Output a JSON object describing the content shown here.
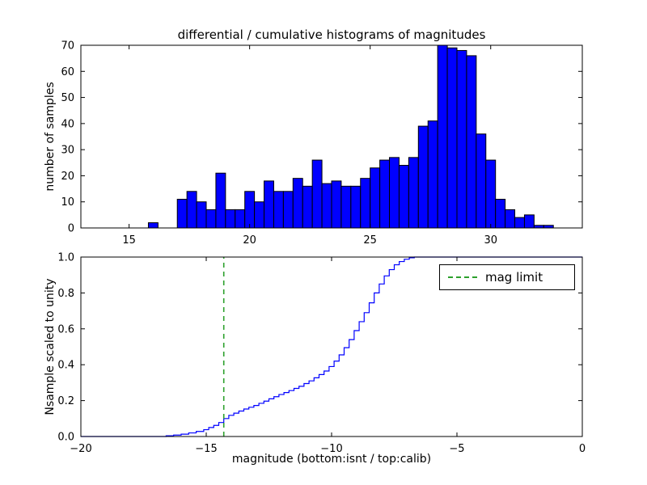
{
  "figure": {
    "title": "differential / cumulative histograms of magnitudes",
    "background": "#ffffff"
  },
  "chart_data": [
    {
      "type": "bar",
      "subtype": "histogram",
      "title": "differential / cumulative histograms of magnitudes",
      "xlabel": "",
      "ylabel": "number of samples",
      "xlim": [
        13,
        33.8
      ],
      "ylim": [
        0,
        70
      ],
      "xticks": [
        15,
        20,
        25,
        30
      ],
      "xtick_labels": [
        "15",
        "20",
        "25",
        "30"
      ],
      "yticks": [
        0,
        10,
        20,
        30,
        40,
        50,
        60,
        70
      ],
      "ytick_labels": [
        "0",
        "10",
        "20",
        "30",
        "40",
        "50",
        "60",
        "70"
      ],
      "bar_color": "#0000ff",
      "edge_color": "#000000",
      "bin_start": 15.8,
      "bin_width": 0.4,
      "heights": [
        2,
        0,
        0,
        11,
        14,
        10,
        7,
        21,
        7,
        7,
        14,
        10,
        18,
        14,
        14,
        19,
        16,
        26,
        17,
        18,
        16,
        16,
        19,
        23,
        26,
        27,
        24,
        27,
        39,
        41,
        70,
        69,
        68,
        66,
        36,
        26,
        11,
        7,
        4,
        5,
        1,
        1
      ],
      "grid": false,
      "legend": null
    },
    {
      "type": "line",
      "subtype": "cumulative-step",
      "xlabel": "magnitude (bottom:isnt / top:calib)",
      "ylabel": "Nsample scaled to unity",
      "xlim": [
        -20,
        0
      ],
      "ylim": [
        0,
        1.0
      ],
      "xticks": [
        -20,
        -15,
        -10,
        -5,
        0
      ],
      "xtick_labels": [
        "−20",
        "−15",
        "−10",
        "−5",
        "0"
      ],
      "yticks": [
        0,
        0.2,
        0.4,
        0.6,
        0.8,
        1.0
      ],
      "ytick_labels": [
        "0.0",
        "0.2",
        "0.4",
        "0.6",
        "0.8",
        "1.0"
      ],
      "line_color": "#0000ff",
      "grid": false,
      "legend": {
        "label": "mag limit",
        "position": "upper right"
      },
      "mag_limit": {
        "x": -14.3,
        "color": "#2ca02c",
        "style": "dashed"
      },
      "steps": [
        [
          -20.0,
          0.0
        ],
        [
          -16.6,
          0.004
        ],
        [
          -16.3,
          0.008
        ],
        [
          -16.0,
          0.013
        ],
        [
          -15.7,
          0.02
        ],
        [
          -15.4,
          0.028
        ],
        [
          -15.1,
          0.038
        ],
        [
          -14.9,
          0.05
        ],
        [
          -14.7,
          0.062
        ],
        [
          -14.5,
          0.078
        ],
        [
          -14.3,
          0.1
        ],
        [
          -14.1,
          0.118
        ],
        [
          -13.9,
          0.13
        ],
        [
          -13.7,
          0.142
        ],
        [
          -13.5,
          0.153
        ],
        [
          -13.3,
          0.163
        ],
        [
          -13.1,
          0.173
        ],
        [
          -12.9,
          0.185
        ],
        [
          -12.7,
          0.197
        ],
        [
          -12.5,
          0.21
        ],
        [
          -12.3,
          0.222
        ],
        [
          -12.1,
          0.234
        ],
        [
          -11.9,
          0.245
        ],
        [
          -11.7,
          0.256
        ],
        [
          -11.5,
          0.268
        ],
        [
          -11.3,
          0.28
        ],
        [
          -11.1,
          0.295
        ],
        [
          -10.9,
          0.31
        ],
        [
          -10.7,
          0.327
        ],
        [
          -10.5,
          0.345
        ],
        [
          -10.3,
          0.365
        ],
        [
          -10.1,
          0.39
        ],
        [
          -9.9,
          0.42
        ],
        [
          -9.7,
          0.455
        ],
        [
          -9.5,
          0.495
        ],
        [
          -9.3,
          0.54
        ],
        [
          -9.1,
          0.59
        ],
        [
          -8.9,
          0.64
        ],
        [
          -8.7,
          0.69
        ],
        [
          -8.5,
          0.745
        ],
        [
          -8.3,
          0.8
        ],
        [
          -8.1,
          0.85
        ],
        [
          -7.9,
          0.895
        ],
        [
          -7.7,
          0.93
        ],
        [
          -7.5,
          0.957
        ],
        [
          -7.3,
          0.975
        ],
        [
          -7.1,
          0.988
        ],
        [
          -6.9,
          0.996
        ],
        [
          -6.7,
          1.0
        ],
        [
          0.0,
          1.0
        ]
      ]
    }
  ]
}
